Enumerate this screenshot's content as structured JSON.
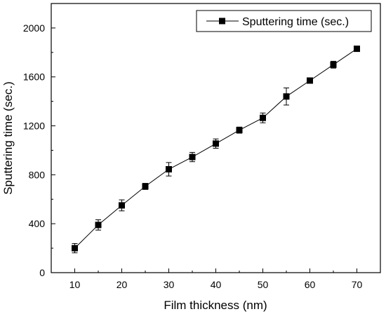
{
  "chart_data": {
    "type": "line",
    "title": "",
    "xlabel": "Film thickness (nm)",
    "ylabel": "Sputtering time (sec.)",
    "xlim": [
      5,
      75
    ],
    "ylim": [
      0,
      2200
    ],
    "xticks": [
      10,
      20,
      30,
      40,
      50,
      60,
      70
    ],
    "yticks": [
      0,
      400,
      800,
      1200,
      1600,
      2000
    ],
    "grid": false,
    "legend_position": "top-right",
    "series": [
      {
        "name": "Sputtering time (sec.)",
        "marker": "square",
        "color": "#000000",
        "x": [
          10,
          15,
          20,
          25,
          30,
          35,
          40,
          45,
          50,
          55,
          60,
          65,
          70
        ],
        "y": [
          200,
          390,
          550,
          705,
          845,
          945,
          1055,
          1165,
          1265,
          1440,
          1570,
          1700,
          1830
        ],
        "error": [
          38,
          42,
          45,
          25,
          55,
          38,
          38,
          25,
          40,
          70,
          12,
          28,
          12
        ]
      }
    ]
  }
}
